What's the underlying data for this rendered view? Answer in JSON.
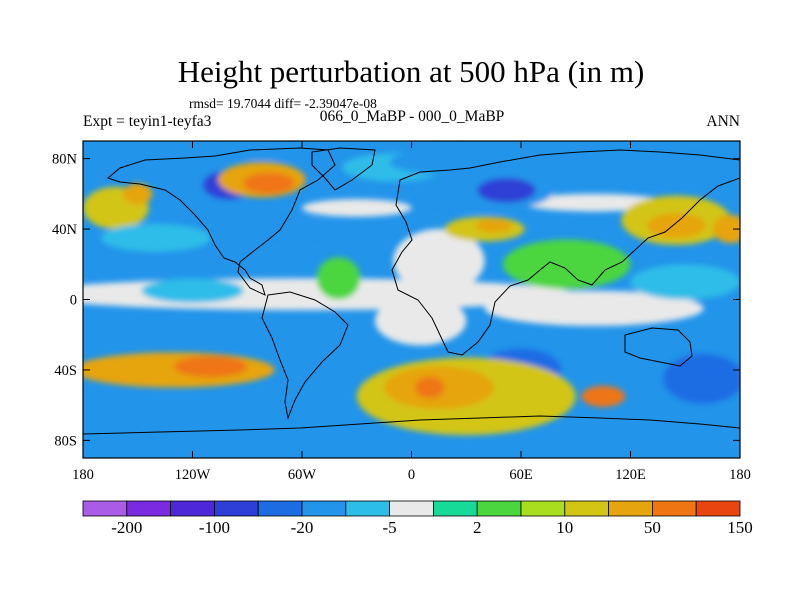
{
  "chart_data": {
    "type": "heatmap",
    "title": "Height perturbation at 500 hPa (in m)",
    "stats": "rmsd= 19.7044 diff= -2.39047e-08",
    "left_label": "Expt = teyin1-teyfa3",
    "center_label": "066_0_MaBP - 000_0_MaBP",
    "right_label": "ANN",
    "xlim": [
      -180,
      180
    ],
    "ylim": [
      -90,
      90
    ],
    "x_ticks": [
      {
        "value": -180,
        "label": "180"
      },
      {
        "value": -120,
        "label": "120W"
      },
      {
        "value": -60,
        "label": "60W"
      },
      {
        "value": 0,
        "label": "0"
      },
      {
        "value": 60,
        "label": "60E"
      },
      {
        "value": 120,
        "label": "120E"
      },
      {
        "value": 180,
        "label": "180"
      }
    ],
    "y_ticks": [
      {
        "value": 80,
        "label": "80N"
      },
      {
        "value": 40,
        "label": "40N"
      },
      {
        "value": 0,
        "label": "0"
      },
      {
        "value": -40,
        "label": "40S"
      },
      {
        "value": -80,
        "label": "80S"
      }
    ],
    "colorbar": {
      "colors": [
        "#a95ce6",
        "#7a2be1",
        "#4d27d8",
        "#2d3fd6",
        "#1e6ce3",
        "#2294ea",
        "#2dbde9",
        "#e9e9e9",
        "#17d998",
        "#4bd63f",
        "#a9de1e",
        "#d2c514",
        "#e6a40f",
        "#ef7513",
        "#e84511"
      ],
      "labels": [
        {
          "label": "-200",
          "boundary": 1
        },
        {
          "label": "-100",
          "boundary": 3
        },
        {
          "label": "-20",
          "boundary": 5
        },
        {
          "label": "-5",
          "boundary": 7
        },
        {
          "label": "2",
          "boundary": 9
        },
        {
          "label": "10",
          "boundary": 11
        },
        {
          "label": "50",
          "boundary": 13
        },
        {
          "label": "150",
          "boundary": 15
        }
      ]
    },
    "field_blobs": [
      {
        "lon": -100,
        "lat": 65,
        "rx": 14,
        "ry": 8,
        "level": 3
      },
      {
        "lon": -75,
        "lat": 85,
        "rx": 30,
        "ry": 5,
        "level": 5
      },
      {
        "lon": -82,
        "lat": 68,
        "rx": 24,
        "ry": 10,
        "level": 12
      },
      {
        "lon": -78,
        "lat": 66,
        "rx": 14,
        "ry": 6,
        "level": 13
      },
      {
        "lon": -162,
        "lat": 52,
        "rx": 18,
        "ry": 12,
        "level": 11
      },
      {
        "lon": -150,
        "lat": 60,
        "rx": 8,
        "ry": 6,
        "level": 12
      },
      {
        "lon": -62,
        "lat": 40,
        "rx": 16,
        "ry": 6,
        "level": 5
      },
      {
        "lon": -140,
        "lat": 35,
        "rx": 30,
        "ry": 8,
        "level": 6
      },
      {
        "lon": -10,
        "lat": 75,
        "rx": 28,
        "ry": 8,
        "level": 6
      },
      {
        "lon": 20,
        "lat": 78,
        "rx": 32,
        "ry": 7,
        "level": 5
      },
      {
        "lon": 40,
        "lat": 62,
        "rx": 38,
        "ry": 12,
        "level": 5
      },
      {
        "lon": 52,
        "lat": 62,
        "rx": 16,
        "ry": 7,
        "level": 3
      },
      {
        "lon": 40,
        "lat": 40,
        "rx": 22,
        "ry": 7,
        "level": 11
      },
      {
        "lon": 45,
        "lat": 42,
        "rx": 10,
        "ry": 4,
        "level": 12
      },
      {
        "lon": 85,
        "lat": 20,
        "rx": 35,
        "ry": 14,
        "level": 9
      },
      {
        "lon": 125,
        "lat": 76,
        "rx": 60,
        "ry": 7,
        "level": 5
      },
      {
        "lon": 145,
        "lat": 45,
        "rx": 30,
        "ry": 14,
        "level": 11
      },
      {
        "lon": 145,
        "lat": 42,
        "rx": 16,
        "ry": 7,
        "level": 12
      },
      {
        "lon": 175,
        "lat": 40,
        "rx": 10,
        "ry": 8,
        "level": 12
      },
      {
        "lon": 150,
        "lat": 10,
        "rx": 30,
        "ry": 10,
        "level": 6
      },
      {
        "lon": -120,
        "lat": 5,
        "rx": 28,
        "ry": 7,
        "level": 6
      },
      {
        "lon": -40,
        "lat": 12,
        "rx": 12,
        "ry": 12,
        "level": 9
      },
      {
        "lon": 60,
        "lat": -40,
        "rx": 22,
        "ry": 12,
        "level": 4
      },
      {
        "lon": 60,
        "lat": -50,
        "rx": 10,
        "ry": 5,
        "level": 3
      },
      {
        "lon": 160,
        "lat": -45,
        "rx": 22,
        "ry": 14,
        "level": 4
      },
      {
        "lon": -130,
        "lat": -40,
        "rx": 55,
        "ry": 10,
        "level": 12
      },
      {
        "lon": -110,
        "lat": -38,
        "rx": 20,
        "ry": 6,
        "level": 13
      },
      {
        "lon": 30,
        "lat": -55,
        "rx": 60,
        "ry": 22,
        "level": 11
      },
      {
        "lon": 15,
        "lat": -50,
        "rx": 30,
        "ry": 12,
        "level": 12
      },
      {
        "lon": 10,
        "lat": -50,
        "rx": 8,
        "ry": 6,
        "level": 13
      },
      {
        "lon": 105,
        "lat": -55,
        "rx": 12,
        "ry": 6,
        "level": 13
      }
    ]
  }
}
